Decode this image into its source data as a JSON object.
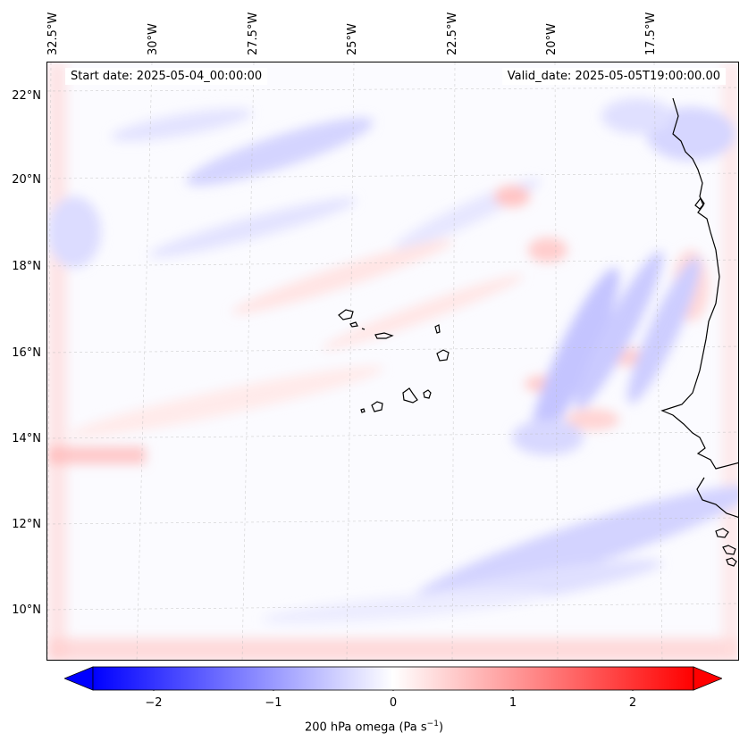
{
  "header": {
    "start_date": "Start date: 2025-05-04_00:00:00",
    "valid_date": "Valid_date: 2025-05-05T19:00:00.00"
  },
  "axes": {
    "lat_labels": [
      "22°N",
      "20°N",
      "18°N",
      "16°N",
      "14°N",
      "12°N",
      "10°N"
    ],
    "lon_labels": [
      "32.5°W",
      "30°W",
      "27.5°W",
      "25°W",
      "22.5°W",
      "20°W",
      "17.5°W"
    ]
  },
  "colorbar": {
    "ticks": [
      "−2",
      "−1",
      "0",
      "1",
      "2"
    ],
    "label_prefix": "200 hPa omega (Pa s",
    "label_exp": "−1",
    "label_suffix": ")",
    "min_color": "#0000ff",
    "mid_color": "#ffffff",
    "max_color": "#ff0000"
  },
  "map": {
    "field": "200 hPa omega",
    "colormap": "bwr",
    "coastline_color": "#000000"
  }
}
